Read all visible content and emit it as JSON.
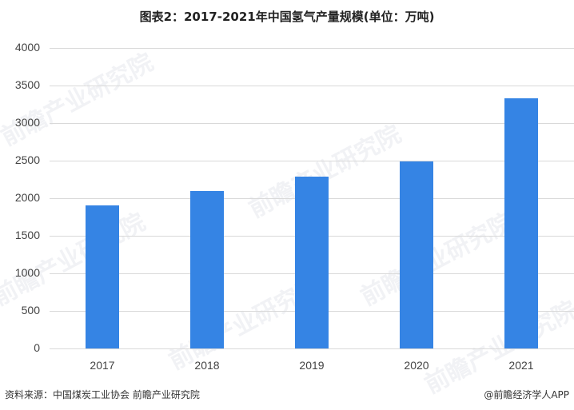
{
  "title": "图表2：2017-2021年中国氢气产量规模(单位：万吨)",
  "footer": {
    "source": "资料来源：中国煤炭工业协会 前瞻产业研究院",
    "credit": "@前瞻经济学人APP"
  },
  "watermark": "前瞻产业研究院",
  "colors": {
    "bar": "#3584e4",
    "grid": "#d9d9d9"
  },
  "chart_data": {
    "type": "bar",
    "title": "图表2：2017-2021年中国氢气产量规模(单位：万吨)",
    "xlabel": "",
    "ylabel": "",
    "categories": [
      "2017",
      "2018",
      "2019",
      "2020",
      "2021"
    ],
    "values": [
      1904,
      2096,
      2287,
      2489,
      3330
    ],
    "ylim": [
      0,
      4000
    ],
    "yticks": [
      "0",
      "500",
      "1000",
      "1500",
      "2000",
      "2500",
      "3000",
      "3500",
      "4000"
    ],
    "grid": true,
    "legend": null
  }
}
